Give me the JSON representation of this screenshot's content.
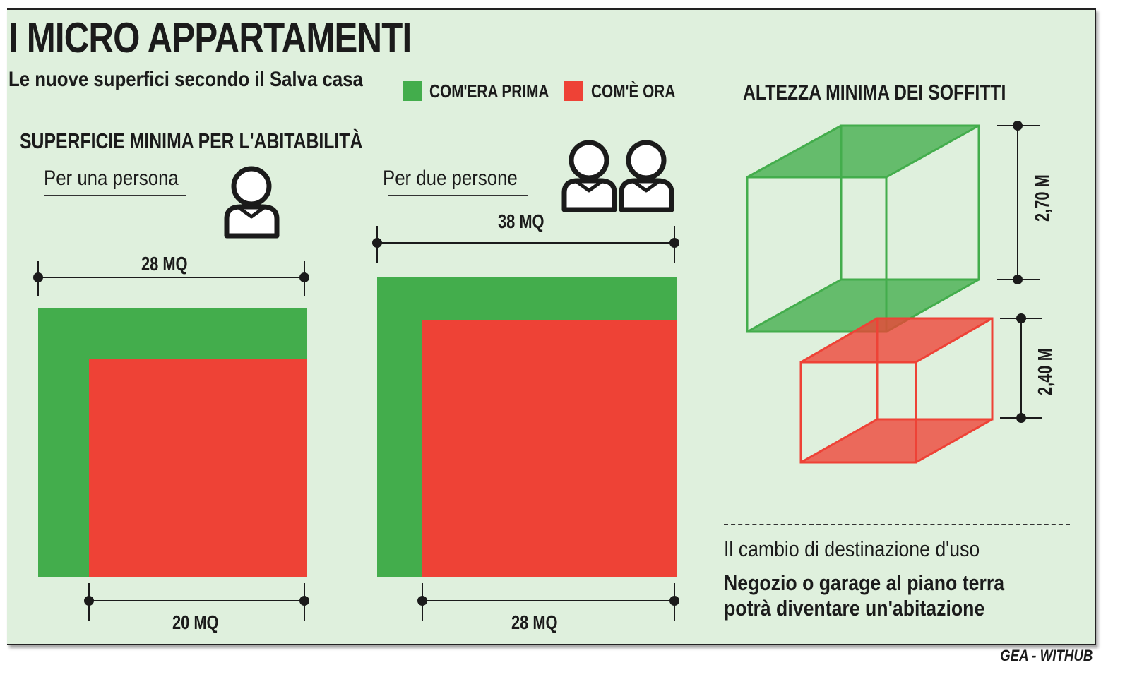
{
  "title": "I MICRO APPARTAMENTI",
  "subtitle": "Le nuove superfici secondo il Salva casa",
  "legend": {
    "before": {
      "label": "COM'ERA PRIMA",
      "color": "#43ad4c"
    },
    "after": {
      "label": "COM'È ORA",
      "color": "#ee4236"
    }
  },
  "surface": {
    "heading": "SUPERFICIE MINIMA PER L'ABITABILITÀ",
    "one_person": {
      "caption": "Per una persona",
      "icon": "person-icon",
      "before_area": "28 MQ",
      "after_area": "20 MQ",
      "before_value_mq": 28,
      "after_value_mq": 20
    },
    "two_persons": {
      "caption": "Per due persone",
      "icon": "two-persons-icon",
      "before_area": "38 MQ",
      "after_area": "28 MQ",
      "before_value_mq": 38,
      "after_value_mq": 28
    }
  },
  "ceiling": {
    "heading": "ALTEZZA MINIMA DEI SOFFITTI",
    "before_height": "2,70 M",
    "after_height": "2,40 M",
    "before_value_m": 2.7,
    "after_value_m": 2.4
  },
  "note": {
    "line1": "Il cambio di destinazione d'uso",
    "line2a": "Negozio o garage al piano terra",
    "line2b": "potrà diventare un'abitazione"
  },
  "credit": "GEA - WITHUB"
}
